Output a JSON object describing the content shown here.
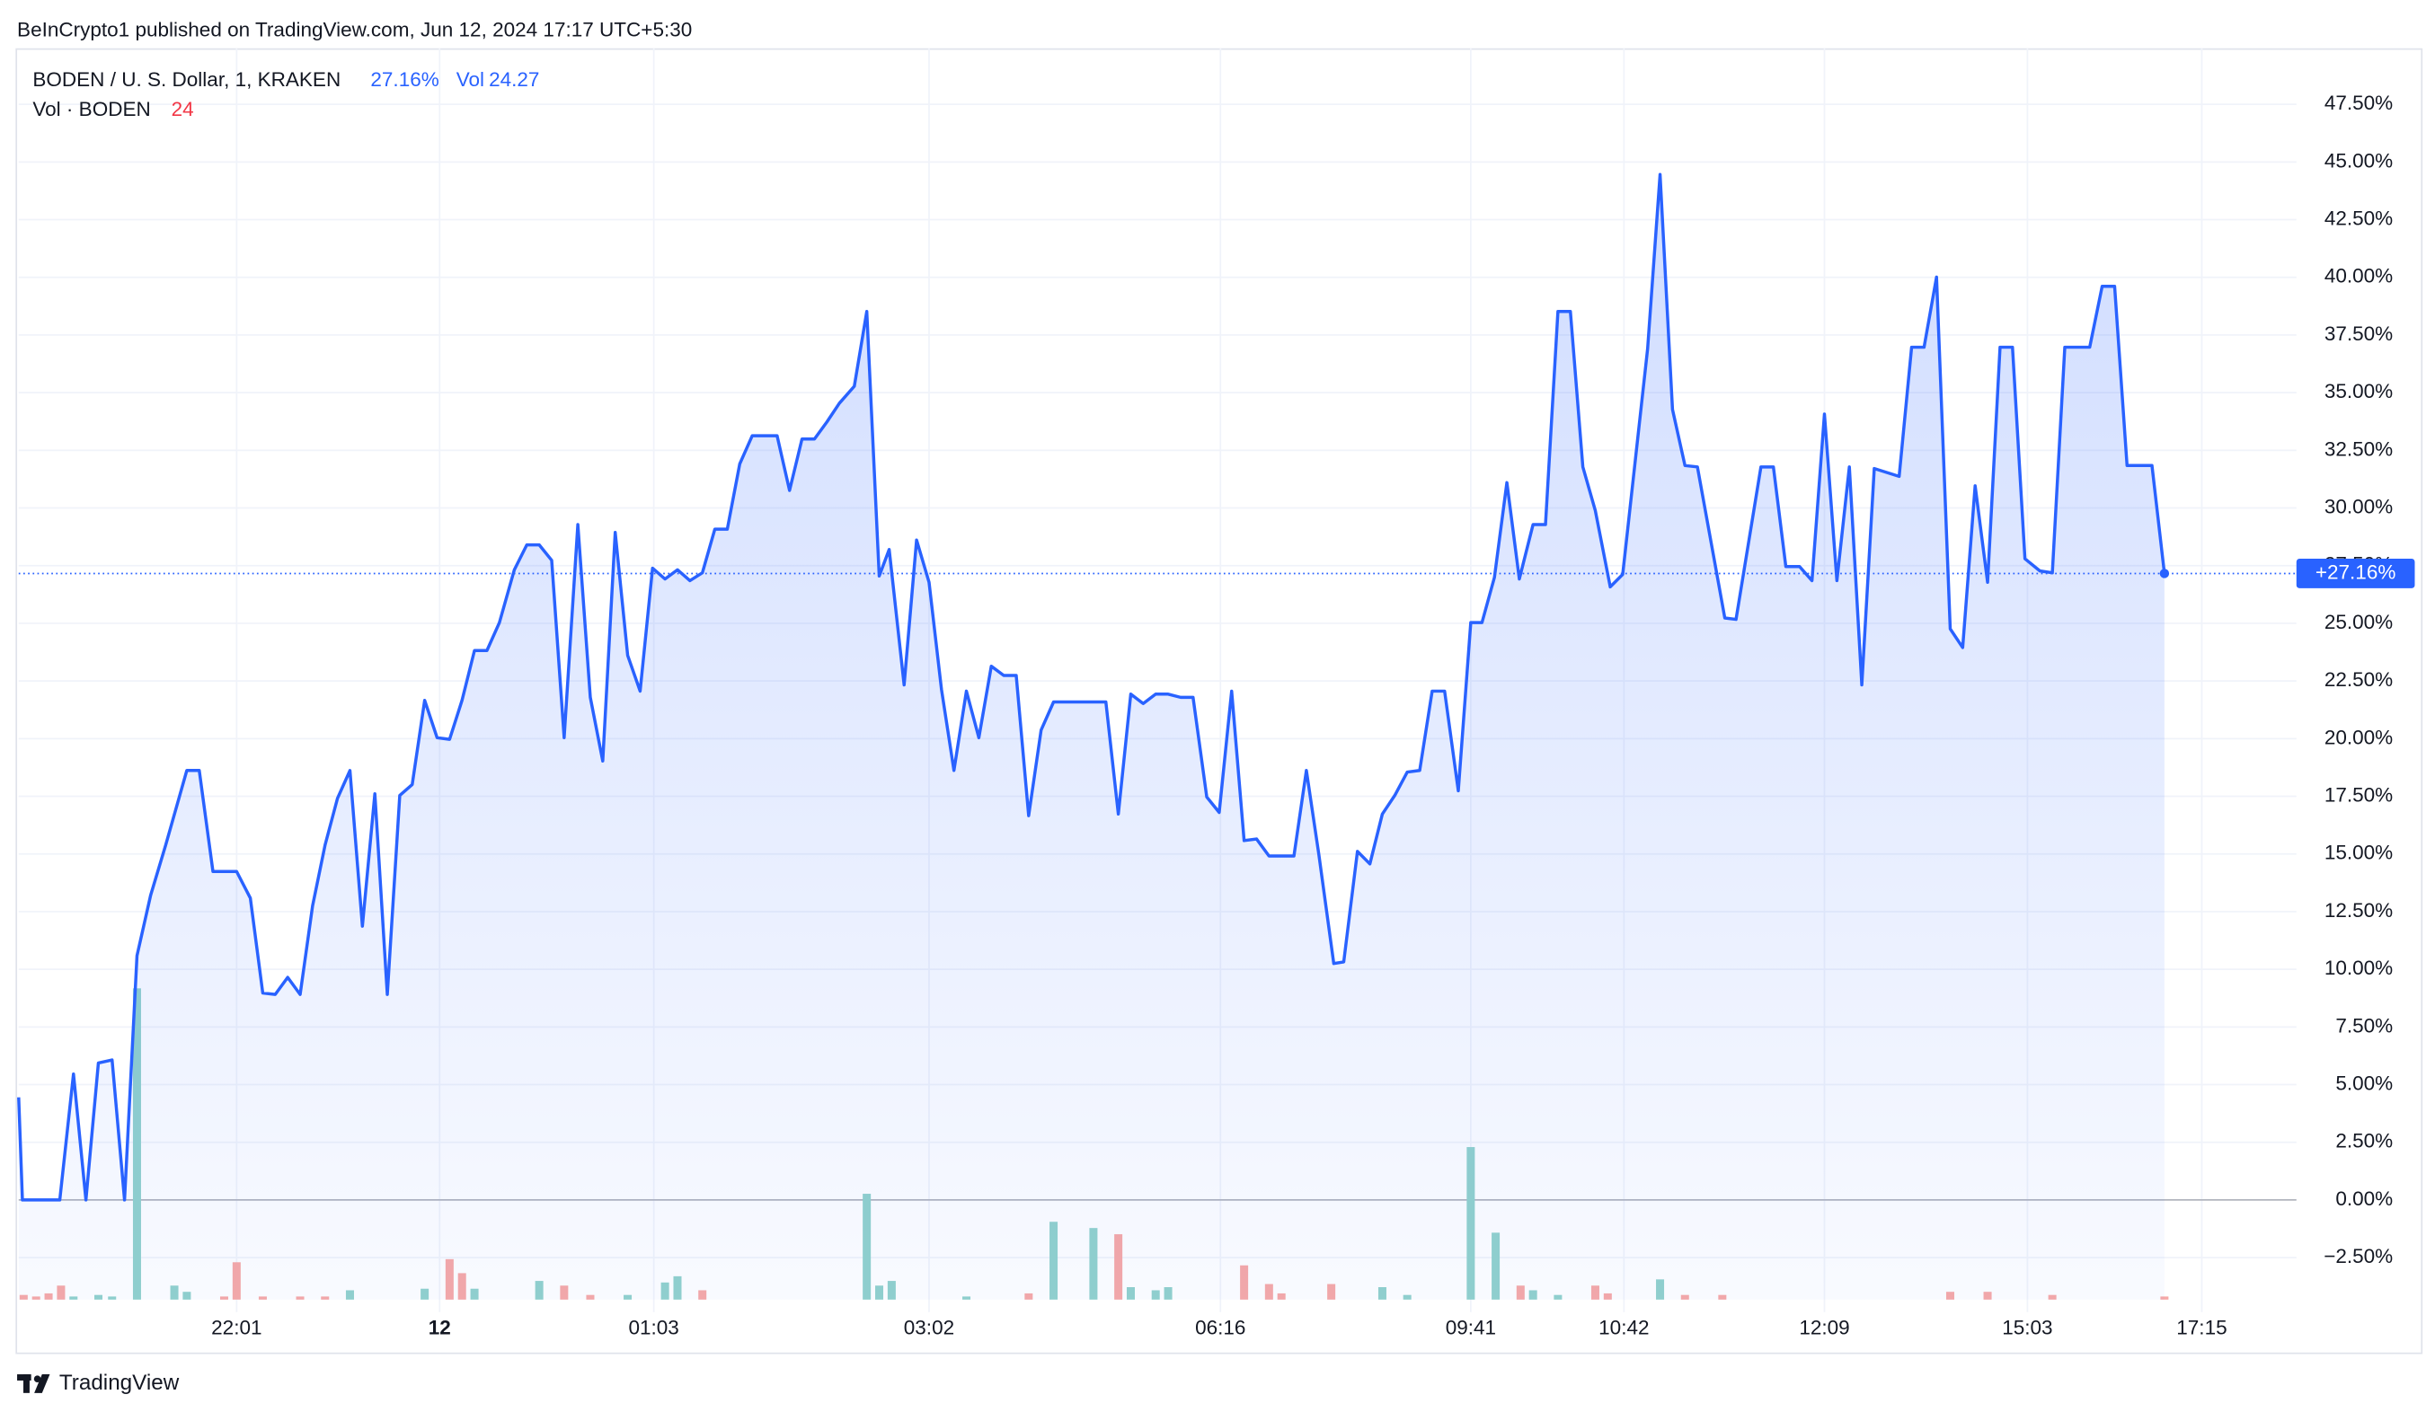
{
  "header": "BeInCrypto1 published on TradingView.com, Jun 12, 2024 17:17 UTC+5:30",
  "footer": "TradingView",
  "chart_data": {
    "type": "area",
    "title": "BODEN / U. S. Dollar, 1, KRAKEN",
    "legend_change": "27.16%",
    "legend_vol_label": "Vol",
    "legend_vol_value": 24.27,
    "last_label": "+27.16%",
    "color": "#2962ff",
    "grid": true,
    "x": [
      0,
      0.3,
      3.3,
      4.4,
      5.4,
      6.4,
      7.5,
      8.5,
      9.5,
      10.6,
      11.8,
      13.5,
      14.5,
      15.6,
      17.5,
      18.6,
      19.6,
      20.6,
      21.6,
      22.6,
      23.6,
      24.6,
      25.6,
      26.6,
      27.6,
      28.6,
      29.6,
      30.6,
      31.6,
      32.6,
      33.6,
      34.6,
      35.6,
      36.6,
      37.6,
      38.6,
      39.8,
      40.8,
      41.8,
      42.8,
      43.8,
      44.9,
      45.9,
      46.9,
      47.9,
      48.9,
      49.9,
      50.9,
      51.9,
      52.9,
      53.9,
      54.9,
      55.9,
      56.9,
      57.9,
      58.9,
      60.9,
      61.9,
      62.9,
      63.9,
      64.9,
      65.9,
      67.1,
      68.1,
      69.1,
      69.9,
      71.1,
      72.1,
      73.1,
      74.1,
      75.1,
      76.1,
      77.1,
      78.1,
      79.1,
      80.1,
      81.1,
      82.1,
      83.1,
      87.3,
      88.3,
      89.3,
      90.3,
      91.3,
      92.3,
      93.3,
      94.3,
      95.4,
      96.4,
      97.4,
      98.4,
      99.4,
      100.4,
      102.4,
      103.4,
      104.4,
      105.6,
      106.4,
      107.5,
      108.5,
      109.5,
      110.5,
      111.5,
      112.5,
      113.5,
      114.5,
      115.6,
      116.6,
      117.5,
      118.5,
      119.5,
      120.5,
      121.6,
      122.6,
      123.6,
      124.6,
      125.6,
      126.6,
      127.8,
      128.8,
      130.8,
      131.8,
      132.8,
      133.8,
      134.8,
      137,
      137.9,
      139.9,
      140.9,
      141.9,
      143,
      144,
      145,
      146,
      147,
      148,
      149,
      151,
      152,
      153,
      154,
      155.1,
      156.1,
      157.1,
      158.1,
      159.1,
      160.1,
      161.1,
      162.3,
      163.3,
      164.3,
      166.3,
      167.3,
      168.3,
      169.3,
      171.3,
      172.3
    ],
    "values": [
      4.45,
      0,
      0,
      5.46,
      0,
      5.94,
      6.07,
      0,
      10.59,
      13.22,
      15.38,
      18.62,
      18.62,
      14.24,
      14.24,
      13.09,
      8.97,
      8.91,
      9.65,
      8.91,
      12.75,
      15.38,
      17.41,
      18.62,
      11.87,
      17.61,
      8.91,
      17.54,
      18.01,
      21.66,
      20.04,
      19.97,
      21.66,
      23.82,
      23.82,
      25.03,
      27.32,
      28.4,
      28.4,
      27.73,
      20.04,
      29.28,
      21.79,
      19.03,
      28.94,
      23.61,
      22.06,
      27.39,
      26.92,
      27.32,
      26.85,
      27.19,
      29.08,
      29.08,
      31.91,
      33.13,
      33.13,
      30.76,
      32.99,
      32.99,
      33.73,
      34.54,
      35.28,
      38.52,
      27.05,
      28.2,
      22.33,
      28.61,
      26.78,
      22.13,
      18.62,
      22.06,
      20.04,
      23.14,
      22.74,
      22.74,
      16.66,
      20.37,
      21.59,
      21.59,
      16.73,
      21.93,
      21.52,
      21.93,
      21.93,
      21.79,
      21.79,
      17.47,
      16.8,
      22.06,
      15.58,
      15.65,
      14.91,
      14.91,
      18.62,
      14.98,
      10.25,
      10.32,
      15.11,
      14.57,
      16.73,
      17.54,
      18.55,
      18.62,
      22.06,
      22.06,
      17.74,
      25.03,
      25.03,
      26.99,
      31.1,
      26.92,
      29.28,
      29.28,
      38.52,
      38.52,
      31.78,
      29.89,
      26.58,
      27.12,
      36.9,
      44.46,
      34.27,
      31.84,
      31.78,
      25.23,
      25.17,
      31.78,
      31.78,
      27.46,
      27.46,
      26.85,
      34.07,
      26.85,
      31.78,
      22.33,
      31.71,
      31.37,
      36.97,
      36.97,
      40.01,
      24.76,
      23.95,
      30.96,
      26.78,
      36.97,
      36.97,
      27.8,
      27.27,
      27.19,
      36.97,
      36.97,
      39.61,
      39.61,
      31.84,
      31.84,
      27.16
    ],
    "xlim": [
      0,
      182.9
    ],
    "xticks": [
      {
        "value": 17.5,
        "label": "22:01"
      },
      {
        "value": 33.8,
        "label": "12"
      },
      {
        "value": 51,
        "label": "01:03"
      },
      {
        "value": 73.1,
        "label": "03:02"
      },
      {
        "value": 96.5,
        "label": "06:16"
      },
      {
        "value": 116.6,
        "label": "09:41"
      },
      {
        "value": 128.9,
        "label": "10:42"
      },
      {
        "value": 145,
        "label": "12:09"
      },
      {
        "value": 161.3,
        "label": "15:03"
      },
      {
        "value": 175.3,
        "label": "17:15"
      }
    ],
    "ylim": [
      -4.86,
      49.93
    ],
    "yticks": [
      {
        "value": -2.5,
        "label": "−2.50%"
      },
      {
        "value": 0,
        "label": "0.00%"
      },
      {
        "value": 2.5,
        "label": "2.50%"
      },
      {
        "value": 5,
        "label": "5.00%"
      },
      {
        "value": 7.5,
        "label": "7.50%"
      },
      {
        "value": 10,
        "label": "10.00%"
      },
      {
        "value": 12.5,
        "label": "12.50%"
      },
      {
        "value": 15,
        "label": "15.00%"
      },
      {
        "value": 17.5,
        "label": "17.50%"
      },
      {
        "value": 20,
        "label": "20.00%"
      },
      {
        "value": 22.5,
        "label": "22.50%"
      },
      {
        "value": 25,
        "label": "25.00%"
      },
      {
        "value": 27.5,
        "label": "27.50%"
      },
      {
        "value": 30,
        "label": "30.00%"
      },
      {
        "value": 32.5,
        "label": "32.50%"
      },
      {
        "value": 35,
        "label": "35.00%"
      },
      {
        "value": 37.5,
        "label": "37.50%"
      },
      {
        "value": 40,
        "label": "40.00%"
      },
      {
        "value": 42.5,
        "label": "42.50%"
      },
      {
        "value": 45,
        "label": "45.00%"
      },
      {
        "value": 47.5,
        "label": "47.50%"
      }
    ],
    "volume": {
      "name": "Vol · BODEN",
      "axis": "y2",
      "x": [
        0.4,
        1.4,
        2.4,
        3.4,
        4.4,
        6.4,
        7.5,
        9.5,
        12.5,
        13.5,
        16.5,
        17.5,
        19.6,
        22.6,
        24.6,
        26.6,
        32.6,
        34.6,
        35.6,
        36.6,
        41.8,
        43.8,
        45.9,
        48.9,
        51.9,
        52.9,
        54.9,
        68.1,
        69.1,
        70.1,
        76.1,
        81.1,
        83.1,
        86.3,
        88.3,
        89.3,
        91.3,
        92.3,
        98.4,
        100.4,
        101.4,
        105.4,
        109.5,
        111.5,
        116.6,
        118.6,
        120.6,
        121.6,
        123.6,
        126.6,
        127.6,
        131.8,
        133.8,
        136.8,
        155.1,
        158.1,
        163.3,
        172.3
      ],
      "values": [
        36,
        24,
        48,
        108,
        24,
        36,
        24,
        2400,
        108,
        60,
        24,
        288,
        24,
        24,
        24,
        72,
        84,
        312,
        204,
        84,
        144,
        108,
        36,
        36,
        132,
        180,
        72,
        816,
        108,
        144,
        24,
        48,
        600,
        552,
        504,
        96,
        72,
        96,
        264,
        120,
        48,
        120,
        96,
        36,
        1176,
        516,
        108,
        72,
        36,
        108,
        48,
        156,
        36,
        36,
        60,
        60,
        36,
        24
      ],
      "colors": [
        "#f7a9a7",
        "#f7a9a7",
        "#f7a9a7",
        "#f7a9a7",
        "#92d2cc",
        "#92d2cc",
        "#92d2cc",
        "#92d2cc",
        "#92d2cc",
        "#92d2cc",
        "#f7a9a7",
        "#f7a9a7",
        "#f7a9a7",
        "#f7a9a7",
        "#f7a9a7",
        "#92d2cc",
        "#92d2cc",
        "#f7a9a7",
        "#f7a9a7",
        "#92d2cc",
        "#92d2cc",
        "#f7a9a7",
        "#f7a9a7",
        "#92d2cc",
        "#92d2cc",
        "#92d2cc",
        "#f7a9a7",
        "#92d2cc",
        "#92d2cc",
        "#92d2cc",
        "#92d2cc",
        "#f7a9a7",
        "#92d2cc",
        "#92d2cc",
        "#f7a9a7",
        "#92d2cc",
        "#92d2cc",
        "#92d2cc",
        "#f7a9a7",
        "#f7a9a7",
        "#f7a9a7",
        "#f7a9a7",
        "#92d2cc",
        "#92d2cc",
        "#92d2cc",
        "#92d2cc",
        "#f7a9a7",
        "#92d2cc",
        "#92d2cc",
        "#f7a9a7",
        "#f7a9a7",
        "#92d2cc",
        "#f7a9a7",
        "#f7a9a7",
        "#f7a9a7",
        "#f7a9a7",
        "#f7a9a7",
        "#f7a9a7"
      ]
    },
    "y2lim": [
      -96,
      9648
    ]
  }
}
